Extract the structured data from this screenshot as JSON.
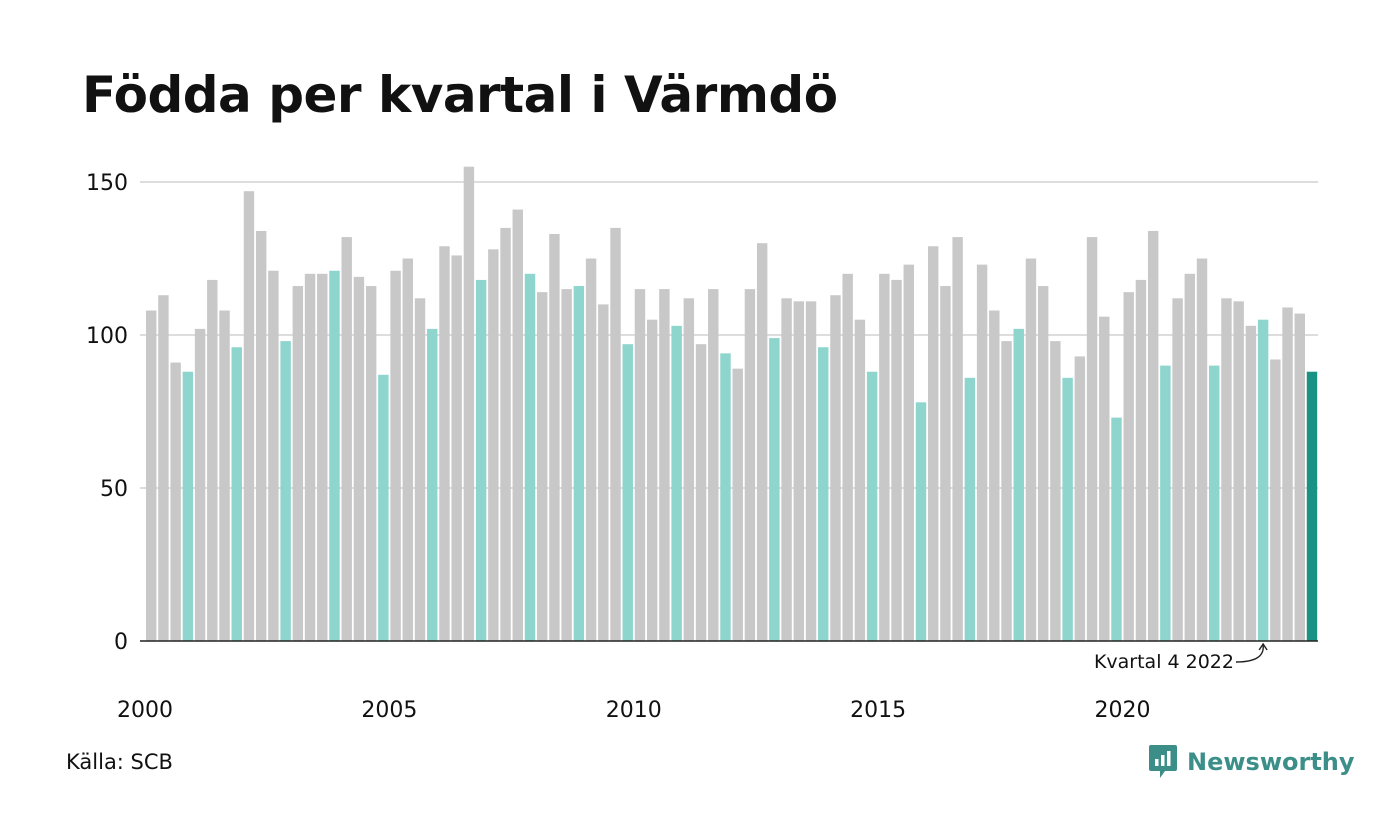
{
  "title": "Födda per kvartal i Värmdö",
  "source": "Källa: SCB",
  "brand": "Newsworthy",
  "colors": {
    "bar": "#c8c8c8",
    "q4": "#8dd5cd",
    "latest": "#1a9185",
    "grid": "#dddddd",
    "brand": "#3c8f88"
  },
  "chart_data": {
    "type": "bar",
    "title": "Födda per kvartal i Värmdö",
    "ylim": [
      0,
      155
    ],
    "yticks": [
      0,
      50,
      100,
      150
    ],
    "ytick_labels": [
      "0",
      "50",
      "100",
      "150"
    ],
    "xtick_labels": [
      "2000",
      "2005",
      "2010",
      "2015",
      "2020"
    ],
    "xtick_years": [
      2000,
      2005,
      2010,
      2015,
      2020
    ],
    "grid": true,
    "annotation": "Kvartal 4 2022",
    "categories": [
      "2000 K1",
      "2000 K2",
      "2000 K3",
      "2000 K4",
      "2001 K1",
      "2001 K2",
      "2001 K3",
      "2001 K4",
      "2002 K1",
      "2002 K2",
      "2002 K3",
      "2002 K4",
      "2003 K1",
      "2003 K2",
      "2003 K3",
      "2003 K4",
      "2004 K1",
      "2004 K2",
      "2004 K3",
      "2004 K4",
      "2005 K1",
      "2005 K2",
      "2005 K3",
      "2005 K4",
      "2006 K1",
      "2006 K2",
      "2006 K3",
      "2006 K4",
      "2007 K1",
      "2007 K2",
      "2007 K3",
      "2007 K4",
      "2008 K1",
      "2008 K2",
      "2008 K3",
      "2008 K4",
      "2009 K1",
      "2009 K2",
      "2009 K3",
      "2009 K4",
      "2010 K1",
      "2010 K2",
      "2010 K3",
      "2010 K4",
      "2011 K1",
      "2011 K2",
      "2011 K3",
      "2011 K4",
      "2012 K1",
      "2012 K2",
      "2012 K3",
      "2012 K4",
      "2013 K1",
      "2013 K2",
      "2013 K3",
      "2013 K4",
      "2014 K1",
      "2014 K2",
      "2014 K3",
      "2014 K4",
      "2015 K1",
      "2015 K2",
      "2015 K3",
      "2015 K4",
      "2016 K1",
      "2016 K2",
      "2016 K3",
      "2016 K4",
      "2017 K1",
      "2017 K2",
      "2017 K3",
      "2017 K4",
      "2018 K1",
      "2018 K2",
      "2018 K3",
      "2018 K4",
      "2019 K1",
      "2019 K2",
      "2019 K3",
      "2019 K4",
      "2020 K1",
      "2020 K2",
      "2020 K3",
      "2020 K4",
      "2021 K1",
      "2021 K2",
      "2021 K3",
      "2021 K4",
      "2022 K1",
      "2022 K2",
      "2022 K3",
      "2022 K4",
      "2023 K1",
      "2023 K2",
      "2023 K3",
      "2023 K4"
    ],
    "values": [
      108,
      113,
      91,
      88,
      102,
      118,
      108,
      96,
      147,
      134,
      121,
      98,
      116,
      120,
      120,
      121,
      132,
      119,
      116,
      87,
      121,
      125,
      112,
      102,
      129,
      126,
      155,
      118,
      128,
      135,
      141,
      120,
      114,
      133,
      115,
      116,
      125,
      110,
      135,
      97,
      115,
      105,
      115,
      103,
      112,
      97,
      115,
      94,
      89,
      115,
      130,
      99,
      112,
      111,
      111,
      96,
      113,
      120,
      105,
      88,
      120,
      118,
      123,
      78,
      129,
      116,
      132,
      86,
      123,
      108,
      98,
      102,
      125,
      116,
      98,
      86,
      93,
      132,
      106,
      73,
      114,
      118,
      134,
      90,
      112,
      120,
      125,
      90,
      112,
      111,
      103,
      105,
      92,
      109,
      107,
      88
    ]
  }
}
